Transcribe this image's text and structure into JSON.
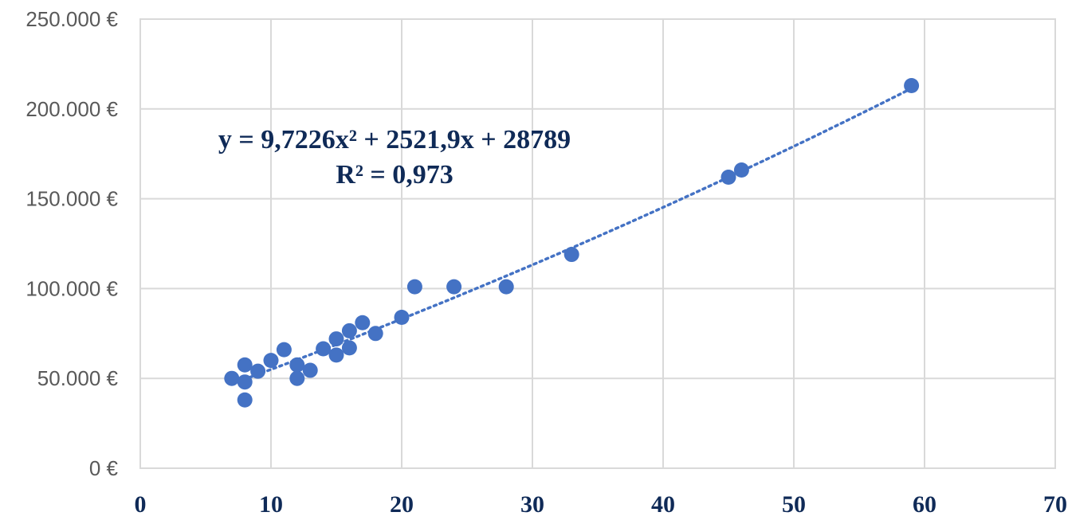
{
  "chart_data": {
    "type": "scatter",
    "title": "",
    "xlabel": "",
    "ylabel": "",
    "xlim": [
      0,
      70
    ],
    "ylim": [
      0,
      250000
    ],
    "x_ticks": [
      "0",
      "10",
      "20",
      "30",
      "40",
      "50",
      "60",
      "70"
    ],
    "y_ticks": [
      "0 €",
      "50.000 €",
      "100.000 €",
      "150.000 €",
      "200.000 €",
      "250.000 €"
    ],
    "grid": true,
    "legend": "none",
    "colors": {
      "points": "#4472c4",
      "trendline": "#4472c4",
      "equation_text": "#0f2a57",
      "grid": "#d9d9d9",
      "y_tick_text": "#595959"
    },
    "points": [
      {
        "x": 7,
        "y": 50000
      },
      {
        "x": 8,
        "y": 57500
      },
      {
        "x": 8,
        "y": 48000
      },
      {
        "x": 8,
        "y": 38000
      },
      {
        "x": 9,
        "y": 54000
      },
      {
        "x": 10,
        "y": 60000
      },
      {
        "x": 11,
        "y": 66000
      },
      {
        "x": 12,
        "y": 57500
      },
      {
        "x": 12,
        "y": 50000
      },
      {
        "x": 13,
        "y": 54500
      },
      {
        "x": 14,
        "y": 66500
      },
      {
        "x": 15,
        "y": 72000
      },
      {
        "x": 15,
        "y": 63000
      },
      {
        "x": 16,
        "y": 76500
      },
      {
        "x": 16,
        "y": 67000
      },
      {
        "x": 17,
        "y": 81000
      },
      {
        "x": 18,
        "y": 75000
      },
      {
        "x": 20,
        "y": 84000
      },
      {
        "x": 21,
        "y": 101000
      },
      {
        "x": 24,
        "y": 101000
      },
      {
        "x": 28,
        "y": 101000
      },
      {
        "x": 33,
        "y": 119000
      },
      {
        "x": 45,
        "y": 162000
      },
      {
        "x": 46,
        "y": 166000
      },
      {
        "x": 59,
        "y": 213000
      }
    ],
    "trendline": {
      "type": "polynomial",
      "coefficients": [
        9.7226,
        2521.9,
        28789
      ],
      "x_range": [
        7,
        59
      ],
      "equation_label": "y = 9,7226x² + 2521,9x + 28789",
      "r2_label": "R² = 0,973"
    }
  }
}
